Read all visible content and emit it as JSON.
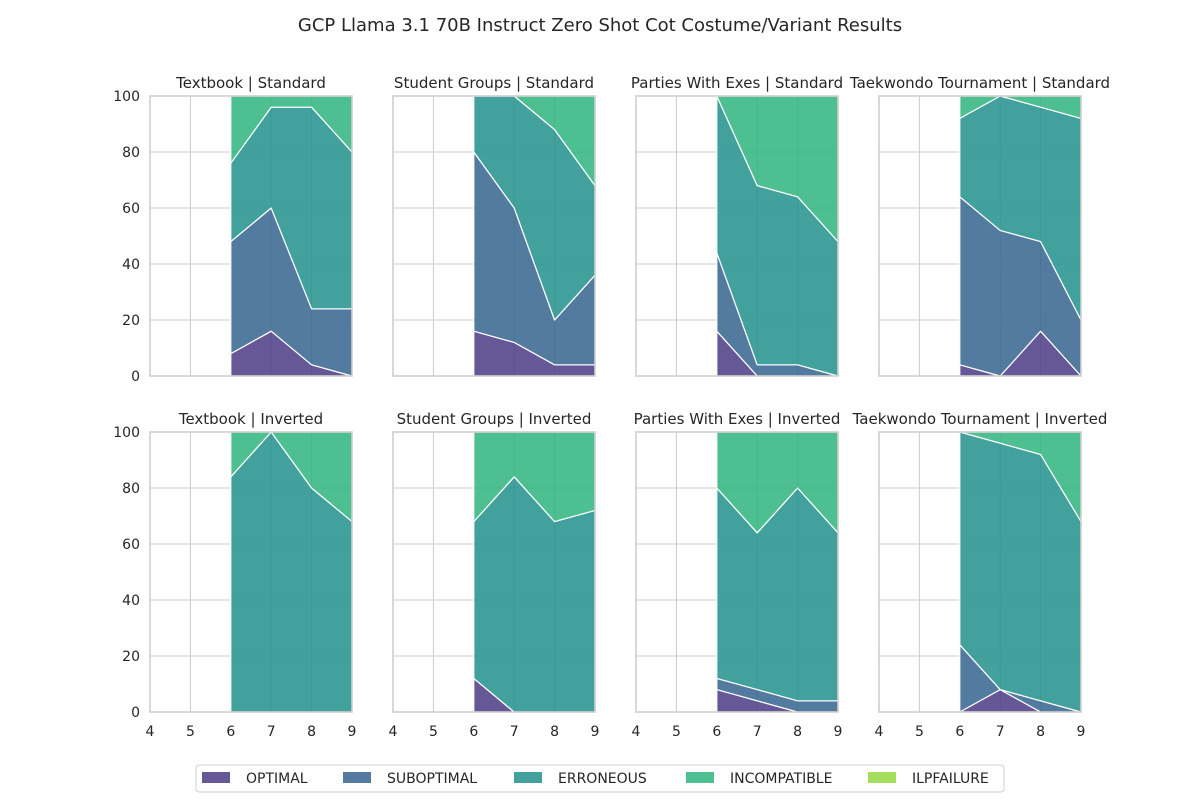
{
  "title": "GCP Llama 3.1 70B Instruct Zero Shot Cot Costume/Variant Results",
  "colors": {
    "OPTIMAL": "#4b3b84",
    "SUBOPTIMAL": "#35648e",
    "ERRONEOUS": "#21918c",
    "INCOMPATIBLE": "#2fb47c",
    "ILPFAILURE": "#95d840",
    "grid": "#cccccc",
    "frame": "#cccccc",
    "stroke": "#ffffff"
  },
  "legend": [
    "OPTIMAL",
    "SUBOPTIMAL",
    "ERRONEOUS",
    "INCOMPATIBLE",
    "ILPFAILURE"
  ],
  "chart_data": {
    "type": "area",
    "stacked": true,
    "x_ticks": [
      4,
      5,
      6,
      7,
      8,
      9
    ],
    "y_ticks": [
      0,
      20,
      40,
      60,
      80,
      100
    ],
    "xlim": [
      4,
      9
    ],
    "ylim": [
      0,
      100
    ],
    "grid": true,
    "legend_position": "bottom",
    "panels": [
      {
        "title": "Textbook | Standard",
        "x": [
          6,
          7,
          8,
          9
        ],
        "series": [
          {
            "name": "OPTIMAL",
            "values": [
              8,
              16,
              4,
              0
            ]
          },
          {
            "name": "SUBOPTIMAL",
            "values": [
              40,
              44,
              20,
              24
            ]
          },
          {
            "name": "ERRONEOUS",
            "values": [
              28,
              36,
              72,
              56
            ]
          },
          {
            "name": "INCOMPATIBLE",
            "values": [
              24,
              4,
              4,
              20
            ]
          },
          {
            "name": "ILPFAILURE",
            "values": [
              0,
              0,
              0,
              0
            ]
          }
        ]
      },
      {
        "title": "Student Groups | Standard",
        "x": [
          6,
          7,
          8,
          9
        ],
        "series": [
          {
            "name": "OPTIMAL",
            "values": [
              16,
              12,
              4,
              4
            ]
          },
          {
            "name": "SUBOPTIMAL",
            "values": [
              64,
              48,
              16,
              32
            ]
          },
          {
            "name": "ERRONEOUS",
            "values": [
              20,
              40,
              68,
              32
            ]
          },
          {
            "name": "INCOMPATIBLE",
            "values": [
              0,
              0,
              12,
              32
            ]
          },
          {
            "name": "ILPFAILURE",
            "values": [
              0,
              0,
              0,
              0
            ]
          }
        ]
      },
      {
        "title": "Parties With Exes | Standard",
        "x": [
          6,
          7,
          8,
          9
        ],
        "series": [
          {
            "name": "OPTIMAL",
            "values": [
              16,
              0,
              0,
              0
            ]
          },
          {
            "name": "SUBOPTIMAL",
            "values": [
              28,
              4,
              4,
              0
            ]
          },
          {
            "name": "ERRONEOUS",
            "values": [
              56,
              64,
              60,
              48
            ]
          },
          {
            "name": "INCOMPATIBLE",
            "values": [
              0,
              32,
              36,
              52
            ]
          },
          {
            "name": "ILPFAILURE",
            "values": [
              0,
              0,
              0,
              0
            ]
          }
        ]
      },
      {
        "title": "Taekwondo Tournament | Standard",
        "x": [
          6,
          7,
          8,
          9
        ],
        "series": [
          {
            "name": "OPTIMAL",
            "values": [
              4,
              0,
              16,
              0
            ]
          },
          {
            "name": "SUBOPTIMAL",
            "values": [
              60,
              52,
              32,
              20
            ]
          },
          {
            "name": "ERRONEOUS",
            "values": [
              28,
              48,
              48,
              72
            ]
          },
          {
            "name": "INCOMPATIBLE",
            "values": [
              8,
              0,
              4,
              8
            ]
          },
          {
            "name": "ILPFAILURE",
            "values": [
              0,
              0,
              0,
              0
            ]
          }
        ]
      },
      {
        "title": "Textbook | Inverted",
        "x": [
          6,
          7,
          8,
          9
        ],
        "series": [
          {
            "name": "OPTIMAL",
            "values": [
              0,
              0,
              0,
              0
            ]
          },
          {
            "name": "SUBOPTIMAL",
            "values": [
              0,
              0,
              0,
              0
            ]
          },
          {
            "name": "ERRONEOUS",
            "values": [
              84,
              100,
              80,
              68
            ]
          },
          {
            "name": "INCOMPATIBLE",
            "values": [
              16,
              0,
              20,
              32
            ]
          },
          {
            "name": "ILPFAILURE",
            "values": [
              0,
              0,
              0,
              0
            ]
          }
        ]
      },
      {
        "title": "Student Groups | Inverted",
        "x": [
          6,
          7,
          8,
          9
        ],
        "series": [
          {
            "name": "OPTIMAL",
            "values": [
              12,
              0,
              0,
              0
            ]
          },
          {
            "name": "SUBOPTIMAL",
            "values": [
              0,
              0,
              0,
              0
            ]
          },
          {
            "name": "ERRONEOUS",
            "values": [
              56,
              84,
              68,
              72
            ]
          },
          {
            "name": "INCOMPATIBLE",
            "values": [
              32,
              16,
              32,
              28
            ]
          },
          {
            "name": "ILPFAILURE",
            "values": [
              0,
              0,
              0,
              0
            ]
          }
        ]
      },
      {
        "title": "Parties With Exes | Inverted",
        "x": [
          6,
          7,
          8,
          9
        ],
        "series": [
          {
            "name": "OPTIMAL",
            "values": [
              8,
              4,
              0,
              0
            ]
          },
          {
            "name": "SUBOPTIMAL",
            "values": [
              4,
              4,
              4,
              4
            ]
          },
          {
            "name": "ERRONEOUS",
            "values": [
              68,
              56,
              76,
              60
            ]
          },
          {
            "name": "INCOMPATIBLE",
            "values": [
              20,
              36,
              20,
              36
            ]
          },
          {
            "name": "ILPFAILURE",
            "values": [
              0,
              0,
              0,
              0
            ]
          }
        ]
      },
      {
        "title": "Taekwondo Tournament | Inverted",
        "x": [
          6,
          7,
          8,
          9
        ],
        "series": [
          {
            "name": "OPTIMAL",
            "values": [
              0,
              8,
              0,
              0
            ]
          },
          {
            "name": "SUBOPTIMAL",
            "values": [
              24,
              0,
              4,
              0
            ]
          },
          {
            "name": "ERRONEOUS",
            "values": [
              76,
              88,
              88,
              68
            ]
          },
          {
            "name": "INCOMPATIBLE",
            "values": [
              0,
              4,
              8,
              32
            ]
          },
          {
            "name": "ILPFAILURE",
            "values": [
              0,
              0,
              0,
              0
            ]
          }
        ]
      }
    ]
  }
}
